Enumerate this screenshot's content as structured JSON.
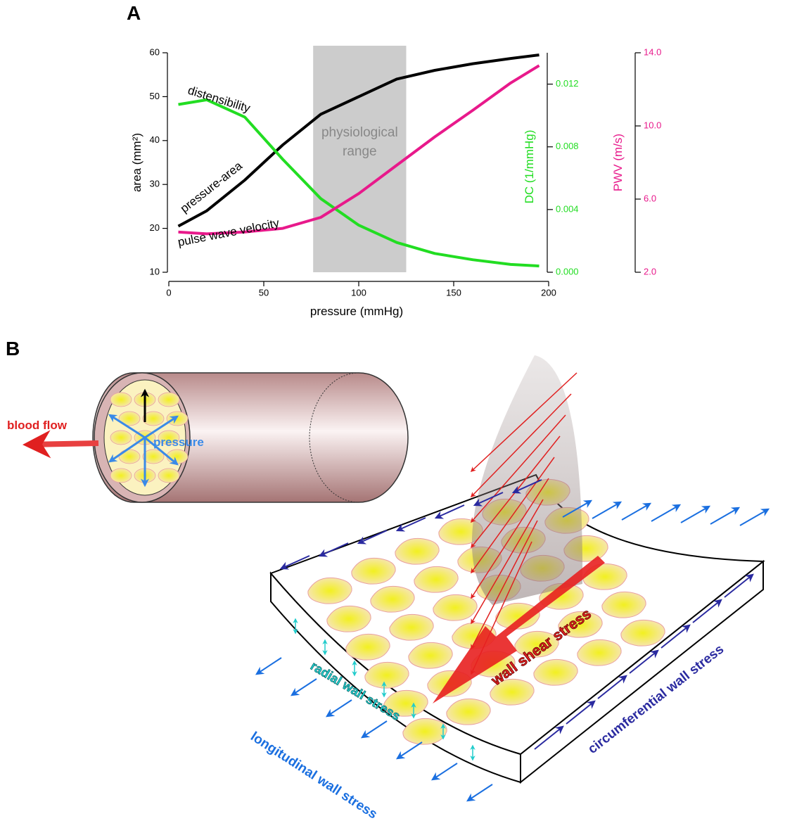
{
  "chart_data": {
    "type": "line",
    "panel_label": "A",
    "xlabel": "pressure (mmHg)",
    "ylabel": "area (mm²)",
    "y2label": "DC (1/mmHg)",
    "y3label": "PWV (m/s)",
    "x": [
      5,
      20,
      40,
      60,
      80,
      100,
      120,
      140,
      160,
      180,
      195
    ],
    "xlim": [
      0,
      200
    ],
    "xticks": [
      0,
      50,
      100,
      150,
      200
    ],
    "ylim": [
      10,
      60
    ],
    "yticks": [
      10,
      20,
      30,
      40,
      50,
      60
    ],
    "y2lim": [
      0,
      0.014
    ],
    "y2ticks": [
      {
        "value": 0,
        "label": "0.000"
      },
      0.004,
      0.008,
      0.012
    ],
    "y2color": "#22dd22",
    "y3lim": [
      2,
      14
    ],
    "y3ticks": [
      {
        "value": 2,
        "label": "2.0"
      },
      {
        "value": 6,
        "label": "6.0"
      },
      {
        "value": 10,
        "label": "10.0"
      },
      {
        "value": 14,
        "label": "14.0"
      }
    ],
    "y3color": "#e8198b",
    "shaded_range": [
      76,
      125
    ],
    "shaded_label": [
      "physiological",
      "range"
    ],
    "series": [
      {
        "name": "pressure-area",
        "color": "#000000",
        "values": [
          20.5,
          24,
          31,
          39,
          46,
          50,
          54,
          56,
          57.5,
          58.7,
          59.5
        ]
      },
      {
        "name": "distensibility",
        "color": "#22dd22",
        "axis": "y2",
        "values": [
          0.0107,
          0.011,
          0.0099,
          0.0072,
          0.0047,
          0.003,
          0.0019,
          0.0012,
          0.0008,
          0.0005,
          0.0004
        ]
      },
      {
        "name": "pulse wave velocity",
        "color": "#e8198b",
        "axis": "y3",
        "values": [
          4.2,
          4.1,
          4.2,
          4.4,
          5.0,
          6.3,
          7.85,
          9.4,
          10.85,
          12.35,
          13.3
        ]
      }
    ]
  },
  "diagram": {
    "panel_label": "B",
    "labels": {
      "blood_flow": "blood flow",
      "pressure": "pressure",
      "wall_shear_stress": "wall shear stress",
      "radial_wall_stress": "radial wall stress",
      "longitudinal_wall_stress": "longitudinal wall stress",
      "circumferential_wall_stress": "circumferential wall stress"
    }
  }
}
